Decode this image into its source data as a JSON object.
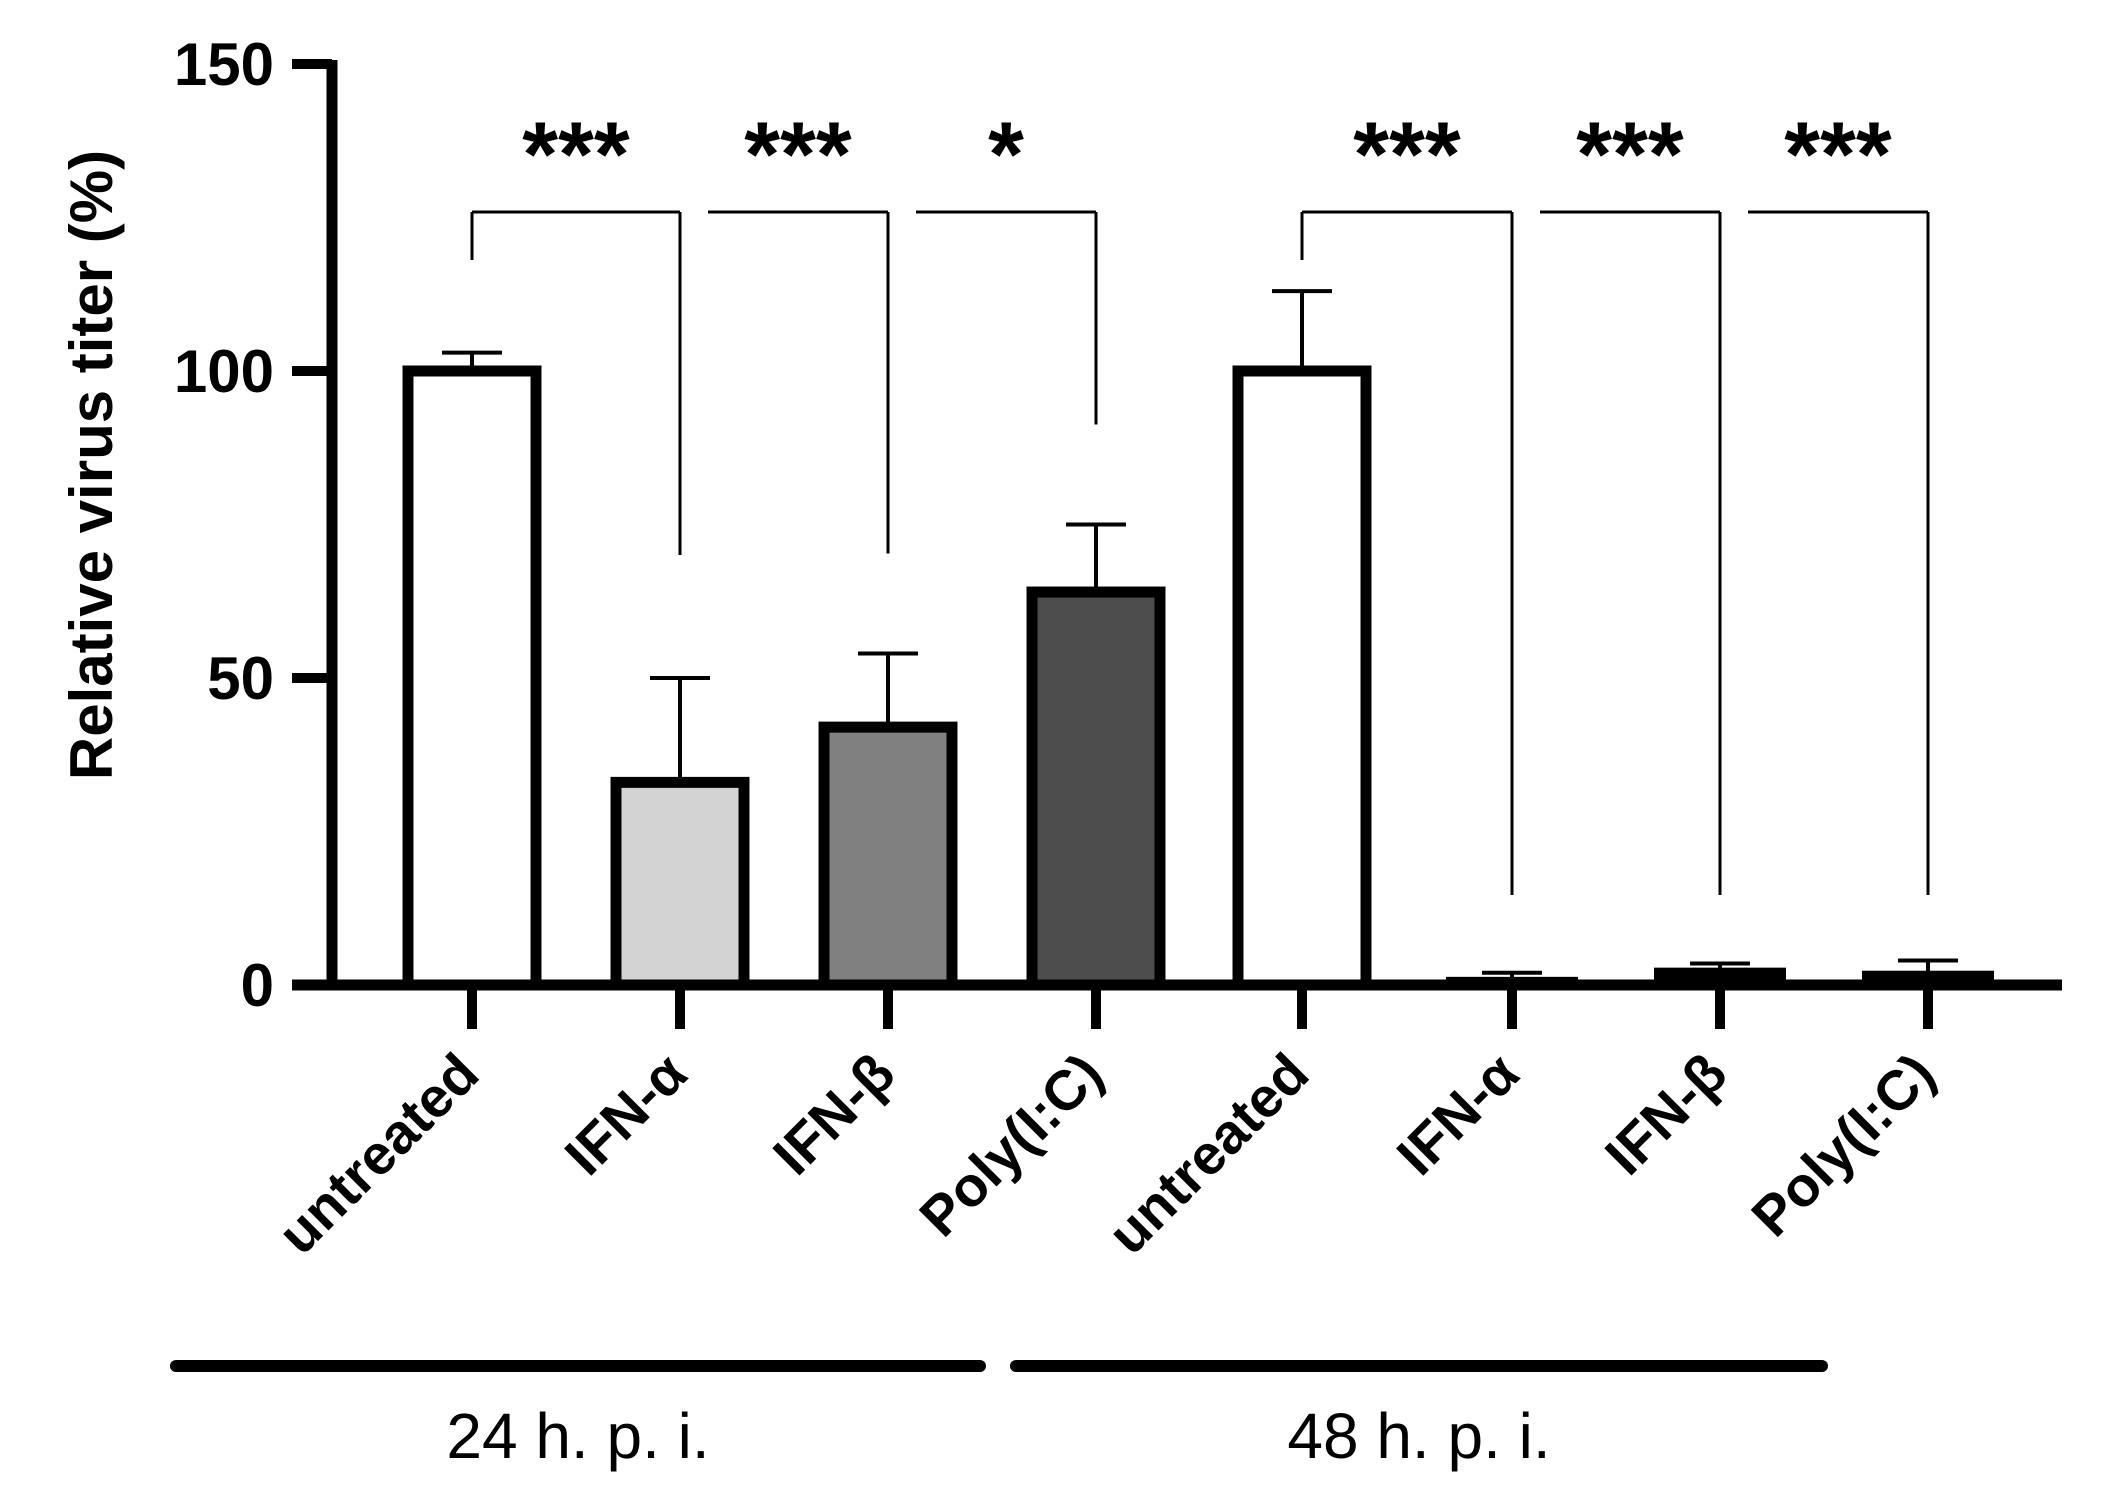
{
  "chart_data": {
    "type": "bar",
    "title": "",
    "xlabel": "",
    "ylabel": "Relative virus titer (%)",
    "ylim": [
      0,
      150
    ],
    "yticks": [
      0,
      50,
      100,
      150
    ],
    "categories": [
      "untreated",
      "IFN-α",
      "IFN-β",
      "Poly(I:C)",
      "untreated",
      "IFN-α",
      "IFN-β",
      "Poly(I:C)"
    ],
    "values": [
      100,
      33,
      42,
      64,
      100,
      1,
      2.5,
      2
    ],
    "errors": [
      3,
      17,
      12,
      11,
      13,
      1,
      1,
      2
    ],
    "bar_colors": [
      "#ffffff",
      "#d3d3d3",
      "#808080",
      "#4d4d4d",
      "#ffffff",
      "#ffffff",
      "#ffffff",
      "#ffffff"
    ],
    "significance": [
      {
        "from": 0,
        "to": 1,
        "label": "***"
      },
      {
        "from": 1,
        "to": 2,
        "label": "***"
      },
      {
        "from": 2,
        "to": 3,
        "label": "*"
      },
      {
        "from": 4,
        "to": 5,
        "label": "***"
      },
      {
        "from": 5,
        "to": 6,
        "label": "***"
      },
      {
        "from": 6,
        "to": 7,
        "label": "***"
      }
    ],
    "groups": [
      {
        "label": "24 h. p. i.",
        "start": 0,
        "end": 3
      },
      {
        "label": "48 h. p. i.",
        "start": 4,
        "end": 7
      }
    ]
  }
}
